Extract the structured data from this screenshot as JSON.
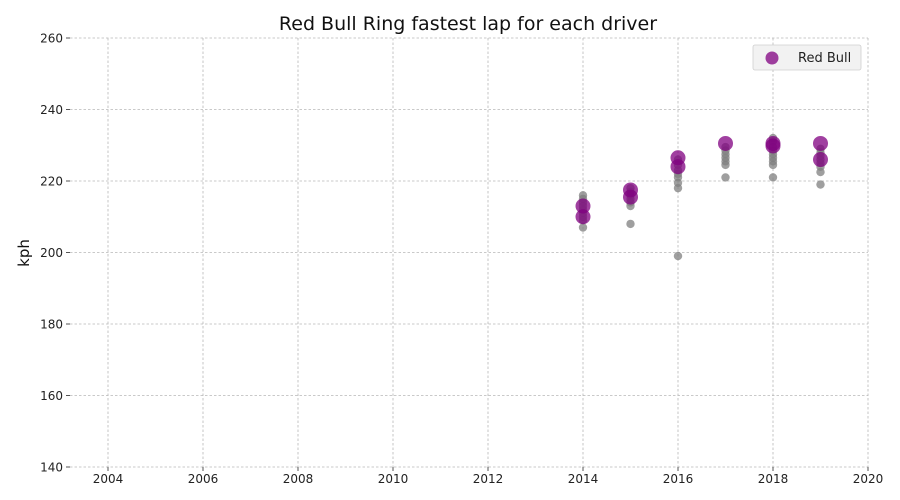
{
  "chart_data": {
    "type": "scatter",
    "title": "Red Bull Ring fastest lap for each driver",
    "xlabel": "",
    "ylabel": "kph",
    "xlim": [
      2003.2,
      2020
    ],
    "ylim": [
      140,
      260
    ],
    "xticks": [
      "2004",
      "2006",
      "2008",
      "2010",
      "2012",
      "2014",
      "2016",
      "2018",
      "2020"
    ],
    "yticks": [
      "140",
      "160",
      "180",
      "200",
      "220",
      "240",
      "260"
    ],
    "grid": true,
    "legend_position": "top-right",
    "series": [
      {
        "name": "",
        "color": "#7f7f7f",
        "marker": "small-circle",
        "points": [
          {
            "x": 2014,
            "y": 207
          },
          {
            "x": 2014,
            "y": 209
          },
          {
            "x": 2014,
            "y": 210
          },
          {
            "x": 2014,
            "y": 211
          },
          {
            "x": 2014,
            "y": 212
          },
          {
            "x": 2014,
            "y": 213
          },
          {
            "x": 2014,
            "y": 214
          },
          {
            "x": 2014,
            "y": 215
          },
          {
            "x": 2014,
            "y": 216
          },
          {
            "x": 2015,
            "y": 208
          },
          {
            "x": 2015,
            "y": 213
          },
          {
            "x": 2015,
            "y": 214
          },
          {
            "x": 2015,
            "y": 215
          },
          {
            "x": 2015,
            "y": 216
          },
          {
            "x": 2015,
            "y": 217
          },
          {
            "x": 2015,
            "y": 218
          },
          {
            "x": 2016,
            "y": 199
          },
          {
            "x": 2016,
            "y": 218
          },
          {
            "x": 2016,
            "y": 219.5
          },
          {
            "x": 2016,
            "y": 221
          },
          {
            "x": 2016,
            "y": 222
          },
          {
            "x": 2016,
            "y": 223
          },
          {
            "x": 2016,
            "y": 224.5
          },
          {
            "x": 2016,
            "y": 226
          },
          {
            "x": 2017,
            "y": 221
          },
          {
            "x": 2017,
            "y": 224.5
          },
          {
            "x": 2017,
            "y": 225.5
          },
          {
            "x": 2017,
            "y": 226.5
          },
          {
            "x": 2017,
            "y": 227.5
          },
          {
            "x": 2017,
            "y": 228.5
          },
          {
            "x": 2017,
            "y": 229.5
          },
          {
            "x": 2018,
            "y": 221
          },
          {
            "x": 2018,
            "y": 224.5
          },
          {
            "x": 2018,
            "y": 225.5
          },
          {
            "x": 2018,
            "y": 226.5
          },
          {
            "x": 2018,
            "y": 227.5
          },
          {
            "x": 2018,
            "y": 228.5
          },
          {
            "x": 2018,
            "y": 229.5
          },
          {
            "x": 2018,
            "y": 231
          },
          {
            "x": 2018,
            "y": 232
          },
          {
            "x": 2019,
            "y": 219
          },
          {
            "x": 2019,
            "y": 222.5
          },
          {
            "x": 2019,
            "y": 224
          },
          {
            "x": 2019,
            "y": 225
          },
          {
            "x": 2019,
            "y": 226
          },
          {
            "x": 2019,
            "y": 227
          },
          {
            "x": 2019,
            "y": 228
          },
          {
            "x": 2019,
            "y": 229
          }
        ]
      },
      {
        "name": "Red Bull",
        "color": "#800080",
        "marker": "large-circle",
        "points": [
          {
            "x": 2014,
            "y": 213
          },
          {
            "x": 2014,
            "y": 210
          },
          {
            "x": 2015,
            "y": 217.5
          },
          {
            "x": 2015,
            "y": 215.5
          },
          {
            "x": 2016,
            "y": 226.5
          },
          {
            "x": 2016,
            "y": 224
          },
          {
            "x": 2017,
            "y": 230.5
          },
          {
            "x": 2018,
            "y": 230.5
          },
          {
            "x": 2018,
            "y": 229.8
          },
          {
            "x": 2019,
            "y": 230.5
          },
          {
            "x": 2019,
            "y": 226
          }
        ]
      }
    ],
    "legend": [
      {
        "label": "Red Bull",
        "color": "#800080"
      }
    ]
  }
}
